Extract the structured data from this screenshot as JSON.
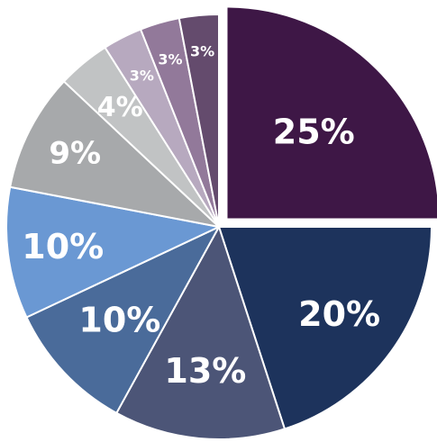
{
  "chart_data": {
    "type": "pie",
    "title": "",
    "exploded_slice": 0,
    "start_angle_deg": 0,
    "direction": "clockwise",
    "slices": [
      {
        "value": 25,
        "label": "25%",
        "color": "#3e1746"
      },
      {
        "value": 20,
        "label": "20%",
        "color": "#1d335c"
      },
      {
        "value": 13,
        "label": "13%",
        "color": "#4c5577"
      },
      {
        "value": 10,
        "label": "10%",
        "color": "#4a6b9a"
      },
      {
        "value": 10,
        "label": "10%",
        "color": "#6a98d3"
      },
      {
        "value": 9,
        "label": "9%",
        "color": "#a7a9ab"
      },
      {
        "value": 4,
        "label": "4%",
        "color": "#c1c3c4"
      },
      {
        "value": 3,
        "label": "3%",
        "color": "#b7a9bf"
      },
      {
        "value": 3,
        "label": "3%",
        "color": "#92799a"
      },
      {
        "value": 3,
        "label": "3%",
        "color": "#644b6d"
      }
    ]
  }
}
